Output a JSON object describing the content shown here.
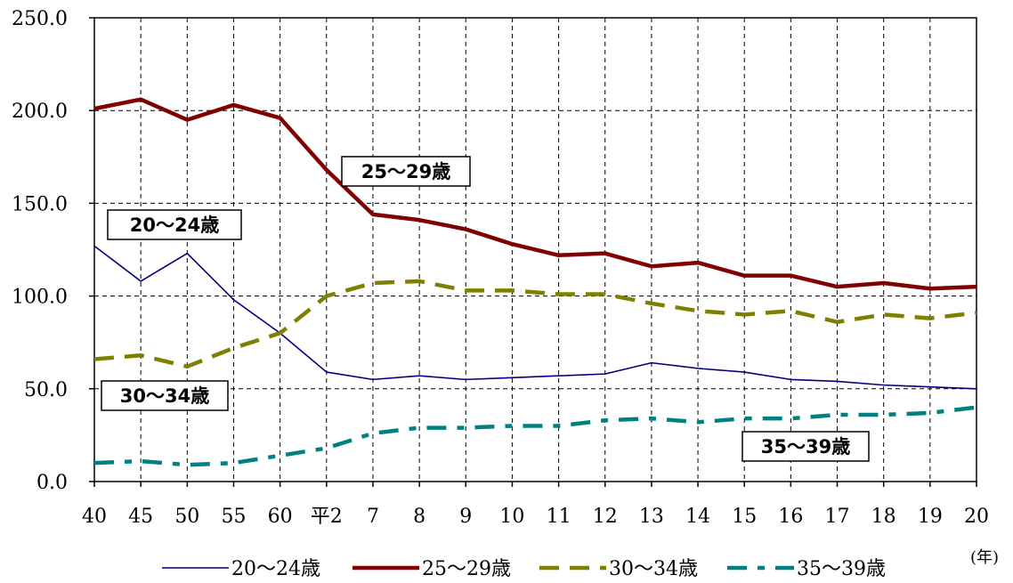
{
  "chart_data": {
    "type": "line",
    "categories": [
      "40",
      "45",
      "50",
      "55",
      "60",
      "平2",
      "7",
      "8",
      "9",
      "10",
      "11",
      "12",
      "13",
      "14",
      "15",
      "16",
      "17",
      "18",
      "19",
      "20"
    ],
    "ylim": [
      0,
      250
    ],
    "yticks": [
      "0.0",
      "50.0",
      "100.0",
      "150.0",
      "200.0",
      "250.0"
    ],
    "x_unit": "(年)",
    "grid": true,
    "legend_position": "bottom",
    "series": [
      {
        "name": "20～24歳",
        "color": "#000080",
        "style": "thin-solid",
        "values": [
          127,
          108,
          123,
          98,
          80,
          59,
          55,
          57,
          55,
          56,
          57,
          58,
          64,
          61,
          59,
          55,
          54,
          52,
          51,
          50
        ]
      },
      {
        "name": "25～29歳",
        "color": "#800000",
        "style": "thick-solid",
        "values": [
          201,
          206,
          195,
          203,
          196,
          168,
          144,
          141,
          136,
          128,
          122,
          123,
          116,
          118,
          111,
          111,
          105,
          107,
          104,
          105
        ]
      },
      {
        "name": "30～34歳",
        "color": "#808000",
        "style": "long-dash",
        "values": [
          66,
          68,
          62,
          72,
          80,
          100,
          107,
          108,
          103,
          103,
          101,
          101,
          96,
          92,
          90,
          92,
          86,
          90,
          88,
          91
        ]
      },
      {
        "name": "35～39歳",
        "color": "#008080",
        "style": "dash-dot",
        "values": [
          10,
          11,
          9,
          10,
          14,
          18,
          26,
          29,
          29,
          30,
          30,
          33,
          34,
          32,
          34,
          34,
          36,
          36,
          37,
          40
        ]
      }
    ],
    "annotations": [
      "25～29歳",
      "20～24歳",
      "30～34歳",
      "35～39歳"
    ]
  }
}
